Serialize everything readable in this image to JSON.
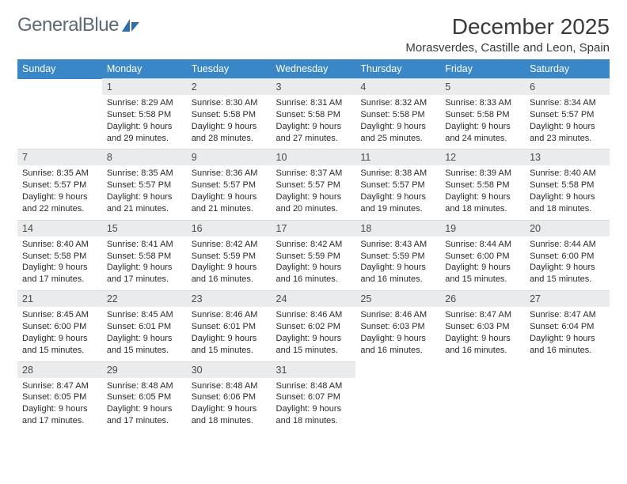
{
  "brand": {
    "name_a": "General",
    "name_b": "Blue"
  },
  "title": "December 2025",
  "location": "Morasverdes, Castille and Leon, Spain",
  "colors": {
    "header_bg": "#3a87c7",
    "header_text": "#ffffff",
    "daynum_bg": "#e9ebec",
    "logo_text": "#5a6a76",
    "logo_mark": "#2f6fa8"
  },
  "weekdays": [
    "Sunday",
    "Monday",
    "Tuesday",
    "Wednesday",
    "Thursday",
    "Friday",
    "Saturday"
  ],
  "weeks": [
    [
      null,
      {
        "n": "1",
        "sr": "8:29 AM",
        "ss": "5:58 PM",
        "dl": "9 hours and 29 minutes."
      },
      {
        "n": "2",
        "sr": "8:30 AM",
        "ss": "5:58 PM",
        "dl": "9 hours and 28 minutes."
      },
      {
        "n": "3",
        "sr": "8:31 AM",
        "ss": "5:58 PM",
        "dl": "9 hours and 27 minutes."
      },
      {
        "n": "4",
        "sr": "8:32 AM",
        "ss": "5:58 PM",
        "dl": "9 hours and 25 minutes."
      },
      {
        "n": "5",
        "sr": "8:33 AM",
        "ss": "5:58 PM",
        "dl": "9 hours and 24 minutes."
      },
      {
        "n": "6",
        "sr": "8:34 AM",
        "ss": "5:57 PM",
        "dl": "9 hours and 23 minutes."
      }
    ],
    [
      {
        "n": "7",
        "sr": "8:35 AM",
        "ss": "5:57 PM",
        "dl": "9 hours and 22 minutes."
      },
      {
        "n": "8",
        "sr": "8:35 AM",
        "ss": "5:57 PM",
        "dl": "9 hours and 21 minutes."
      },
      {
        "n": "9",
        "sr": "8:36 AM",
        "ss": "5:57 PM",
        "dl": "9 hours and 21 minutes."
      },
      {
        "n": "10",
        "sr": "8:37 AM",
        "ss": "5:57 PM",
        "dl": "9 hours and 20 minutes."
      },
      {
        "n": "11",
        "sr": "8:38 AM",
        "ss": "5:57 PM",
        "dl": "9 hours and 19 minutes."
      },
      {
        "n": "12",
        "sr": "8:39 AM",
        "ss": "5:58 PM",
        "dl": "9 hours and 18 minutes."
      },
      {
        "n": "13",
        "sr": "8:40 AM",
        "ss": "5:58 PM",
        "dl": "9 hours and 18 minutes."
      }
    ],
    [
      {
        "n": "14",
        "sr": "8:40 AM",
        "ss": "5:58 PM",
        "dl": "9 hours and 17 minutes."
      },
      {
        "n": "15",
        "sr": "8:41 AM",
        "ss": "5:58 PM",
        "dl": "9 hours and 17 minutes."
      },
      {
        "n": "16",
        "sr": "8:42 AM",
        "ss": "5:59 PM",
        "dl": "9 hours and 16 minutes."
      },
      {
        "n": "17",
        "sr": "8:42 AM",
        "ss": "5:59 PM",
        "dl": "9 hours and 16 minutes."
      },
      {
        "n": "18",
        "sr": "8:43 AM",
        "ss": "5:59 PM",
        "dl": "9 hours and 16 minutes."
      },
      {
        "n": "19",
        "sr": "8:44 AM",
        "ss": "6:00 PM",
        "dl": "9 hours and 15 minutes."
      },
      {
        "n": "20",
        "sr": "8:44 AM",
        "ss": "6:00 PM",
        "dl": "9 hours and 15 minutes."
      }
    ],
    [
      {
        "n": "21",
        "sr": "8:45 AM",
        "ss": "6:00 PM",
        "dl": "9 hours and 15 minutes."
      },
      {
        "n": "22",
        "sr": "8:45 AM",
        "ss": "6:01 PM",
        "dl": "9 hours and 15 minutes."
      },
      {
        "n": "23",
        "sr": "8:46 AM",
        "ss": "6:01 PM",
        "dl": "9 hours and 15 minutes."
      },
      {
        "n": "24",
        "sr": "8:46 AM",
        "ss": "6:02 PM",
        "dl": "9 hours and 15 minutes."
      },
      {
        "n": "25",
        "sr": "8:46 AM",
        "ss": "6:03 PM",
        "dl": "9 hours and 16 minutes."
      },
      {
        "n": "26",
        "sr": "8:47 AM",
        "ss": "6:03 PM",
        "dl": "9 hours and 16 minutes."
      },
      {
        "n": "27",
        "sr": "8:47 AM",
        "ss": "6:04 PM",
        "dl": "9 hours and 16 minutes."
      }
    ],
    [
      {
        "n": "28",
        "sr": "8:47 AM",
        "ss": "6:05 PM",
        "dl": "9 hours and 17 minutes."
      },
      {
        "n": "29",
        "sr": "8:48 AM",
        "ss": "6:05 PM",
        "dl": "9 hours and 17 minutes."
      },
      {
        "n": "30",
        "sr": "8:48 AM",
        "ss": "6:06 PM",
        "dl": "9 hours and 18 minutes."
      },
      {
        "n": "31",
        "sr": "8:48 AM",
        "ss": "6:07 PM",
        "dl": "9 hours and 18 minutes."
      },
      null,
      null,
      null
    ]
  ],
  "labels": {
    "sunrise": "Sunrise:",
    "sunset": "Sunset:",
    "daylight": "Daylight:"
  }
}
